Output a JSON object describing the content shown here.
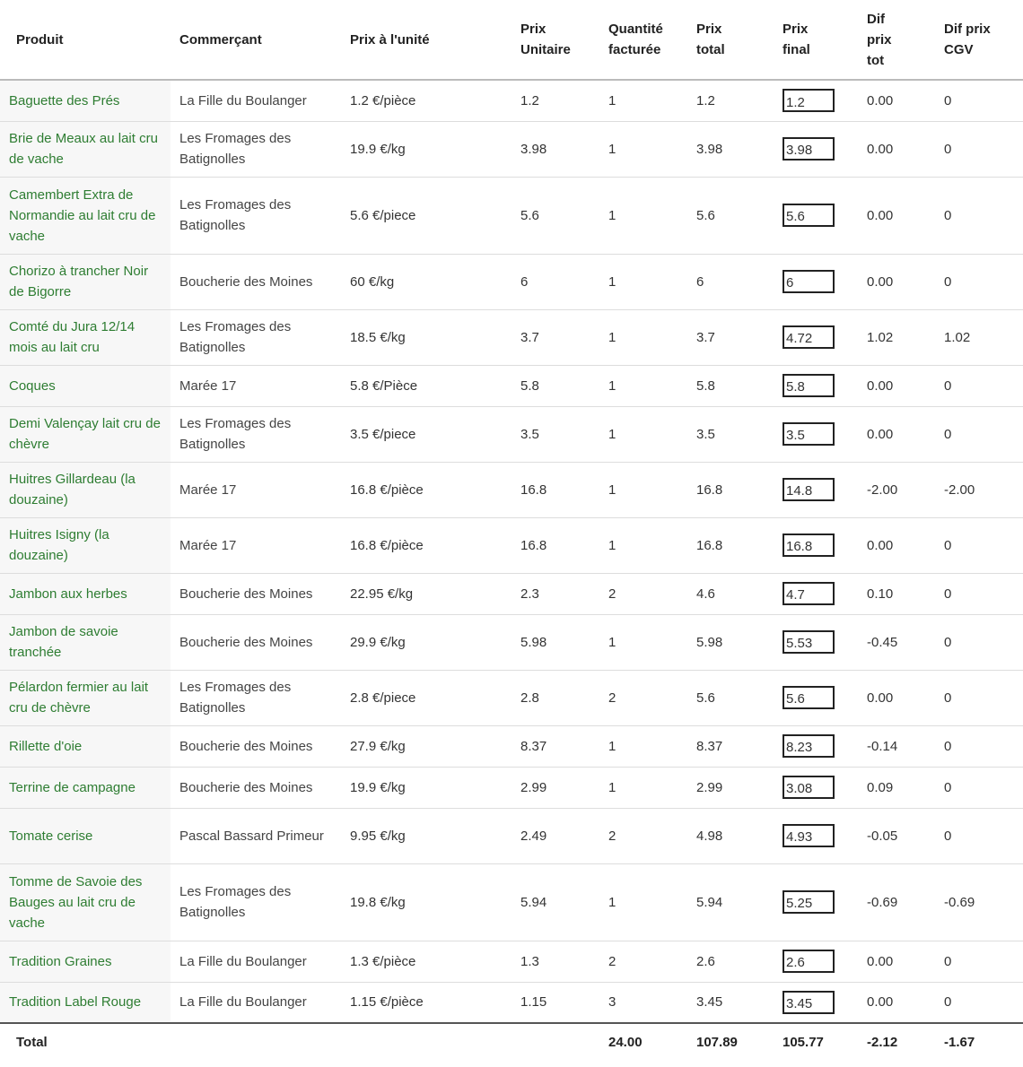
{
  "columns": [
    "Produit",
    "Commerçant",
    "Prix à l'unité",
    "Prix\nUnitaire",
    "Quantité\nfacturée",
    "Prix\ntotal",
    "Prix\nfinal",
    "Dif\nprix\ntot",
    "Dif prix\nCGV"
  ],
  "rows": [
    {
      "product": "Baguette des Prés",
      "merchant": "La Fille du Boulanger",
      "unit_label": "1.2 €/pièce",
      "unit_price": "1.2",
      "qty": "1",
      "total": "1.2",
      "final": "1.2",
      "dif_tot": "0.00",
      "dif_cgv": "0"
    },
    {
      "product": "Brie de Meaux au lait cru de vache",
      "merchant": "Les Fromages des Batignolles",
      "unit_label": "19.9 €/kg",
      "unit_price": "3.98",
      "qty": "1",
      "total": "3.98",
      "final": "3.98",
      "dif_tot": "0.00",
      "dif_cgv": "0"
    },
    {
      "product": "Camembert Extra de Normandie au lait cru de vache",
      "merchant": "Les Fromages des Batignolles",
      "unit_label": "5.6 €/piece",
      "unit_price": "5.6",
      "qty": "1",
      "total": "5.6",
      "final": "5.6",
      "dif_tot": "0.00",
      "dif_cgv": "0"
    },
    {
      "product": "Chorizo à trancher Noir de Bigorre",
      "merchant": "Boucherie des Moines",
      "unit_label": "60 €/kg",
      "unit_price": "6",
      "qty": "1",
      "total": "6",
      "final": "6",
      "dif_tot": "0.00",
      "dif_cgv": "0"
    },
    {
      "product": "Comté du Jura 12/14 mois au lait cru",
      "merchant": "Les Fromages des Batignolles",
      "unit_label": "18.5 €/kg",
      "unit_price": "3.7",
      "qty": "1",
      "total": "3.7",
      "final": "4.72",
      "dif_tot": "1.02",
      "dif_cgv": "1.02"
    },
    {
      "product": "Coques",
      "merchant": "Marée 17",
      "unit_label": "5.8 €/Pièce",
      "unit_price": "5.8",
      "qty": "1",
      "total": "5.8",
      "final": "5.8",
      "dif_tot": "0.00",
      "dif_cgv": "0"
    },
    {
      "product": "Demi Valençay lait cru de chèvre",
      "merchant": "Les Fromages des Batignolles",
      "unit_label": "3.5 €/piece",
      "unit_price": "3.5",
      "qty": "1",
      "total": "3.5",
      "final": "3.5",
      "dif_tot": "0.00",
      "dif_cgv": "0"
    },
    {
      "product": "Huitres Gillardeau (la douzaine)",
      "merchant": "Marée 17",
      "unit_label": "16.8 €/pièce",
      "unit_price": "16.8",
      "qty": "1",
      "total": "16.8",
      "final": "14.8",
      "dif_tot": "-2.00",
      "dif_cgv": "-2.00"
    },
    {
      "product": "Huitres Isigny (la douzaine)",
      "merchant": "Marée 17",
      "unit_label": "16.8 €/pièce",
      "unit_price": "16.8",
      "qty": "1",
      "total": "16.8",
      "final": "16.8",
      "dif_tot": "0.00",
      "dif_cgv": "0"
    },
    {
      "product": "Jambon aux herbes",
      "merchant": "Boucherie des Moines",
      "unit_label": "22.95 €/kg",
      "unit_price": "2.3",
      "qty": "2",
      "total": "4.6",
      "final": "4.7",
      "dif_tot": "0.10",
      "dif_cgv": "0"
    },
    {
      "product": "Jambon de savoie tranchée",
      "merchant": "Boucherie des Moines",
      "unit_label": "29.9 €/kg",
      "unit_price": "5.98",
      "qty": "1",
      "total": "5.98",
      "final": "5.53",
      "dif_tot": "-0.45",
      "dif_cgv": "0"
    },
    {
      "product": "Pélardon fermier au lait cru de chèvre",
      "merchant": "Les Fromages des Batignolles",
      "unit_label": "2.8 €/piece",
      "unit_price": "2.8",
      "qty": "2",
      "total": "5.6",
      "final": "5.6",
      "dif_tot": "0.00",
      "dif_cgv": "0"
    },
    {
      "product": "Rillette d'oie",
      "merchant": "Boucherie des Moines",
      "unit_label": "27.9 €/kg",
      "unit_price": "8.37",
      "qty": "1",
      "total": "8.37",
      "final": "8.23",
      "dif_tot": "-0.14",
      "dif_cgv": "0"
    },
    {
      "product": "Terrine de campagne",
      "merchant": "Boucherie des Moines",
      "unit_label": "19.9 €/kg",
      "unit_price": "2.99",
      "qty": "1",
      "total": "2.99",
      "final": "3.08",
      "dif_tot": "0.09",
      "dif_cgv": "0"
    },
    {
      "product": "Tomate cerise",
      "merchant": "Pascal Bassard Primeur",
      "unit_label": "9.95 €/kg",
      "unit_price": "2.49",
      "qty": "2",
      "total": "4.98",
      "final": "4.93",
      "dif_tot": "-0.05",
      "dif_cgv": "0"
    },
    {
      "product": "Tomme de Savoie des Bauges au lait cru de vache",
      "merchant": "Les Fromages des Batignolles",
      "unit_label": "19.8 €/kg",
      "unit_price": "5.94",
      "qty": "1",
      "total": "5.94",
      "final": "5.25",
      "dif_tot": "-0.69",
      "dif_cgv": "-0.69"
    },
    {
      "product": "Tradition Graines",
      "merchant": "La Fille du Boulanger",
      "unit_label": "1.3 €/pièce",
      "unit_price": "1.3",
      "qty": "2",
      "total": "2.6",
      "final": "2.6",
      "dif_tot": "0.00",
      "dif_cgv": "0"
    },
    {
      "product": "Tradition Label Rouge",
      "merchant": "La Fille du Boulanger",
      "unit_label": "1.15 €/pièce",
      "unit_price": "1.15",
      "qty": "3",
      "total": "3.45",
      "final": "3.45",
      "dif_tot": "0.00",
      "dif_cgv": "0"
    }
  ],
  "totals": {
    "label": "Total",
    "qty": "24.00",
    "total": "107.89",
    "final": "105.77",
    "dif_tot": "-2.12",
    "dif_cgv": "-1.67"
  },
  "colors": {
    "product_text": "#2e7d32",
    "product_bg": "#f7f7f7",
    "row_border": "#dddddd"
  }
}
